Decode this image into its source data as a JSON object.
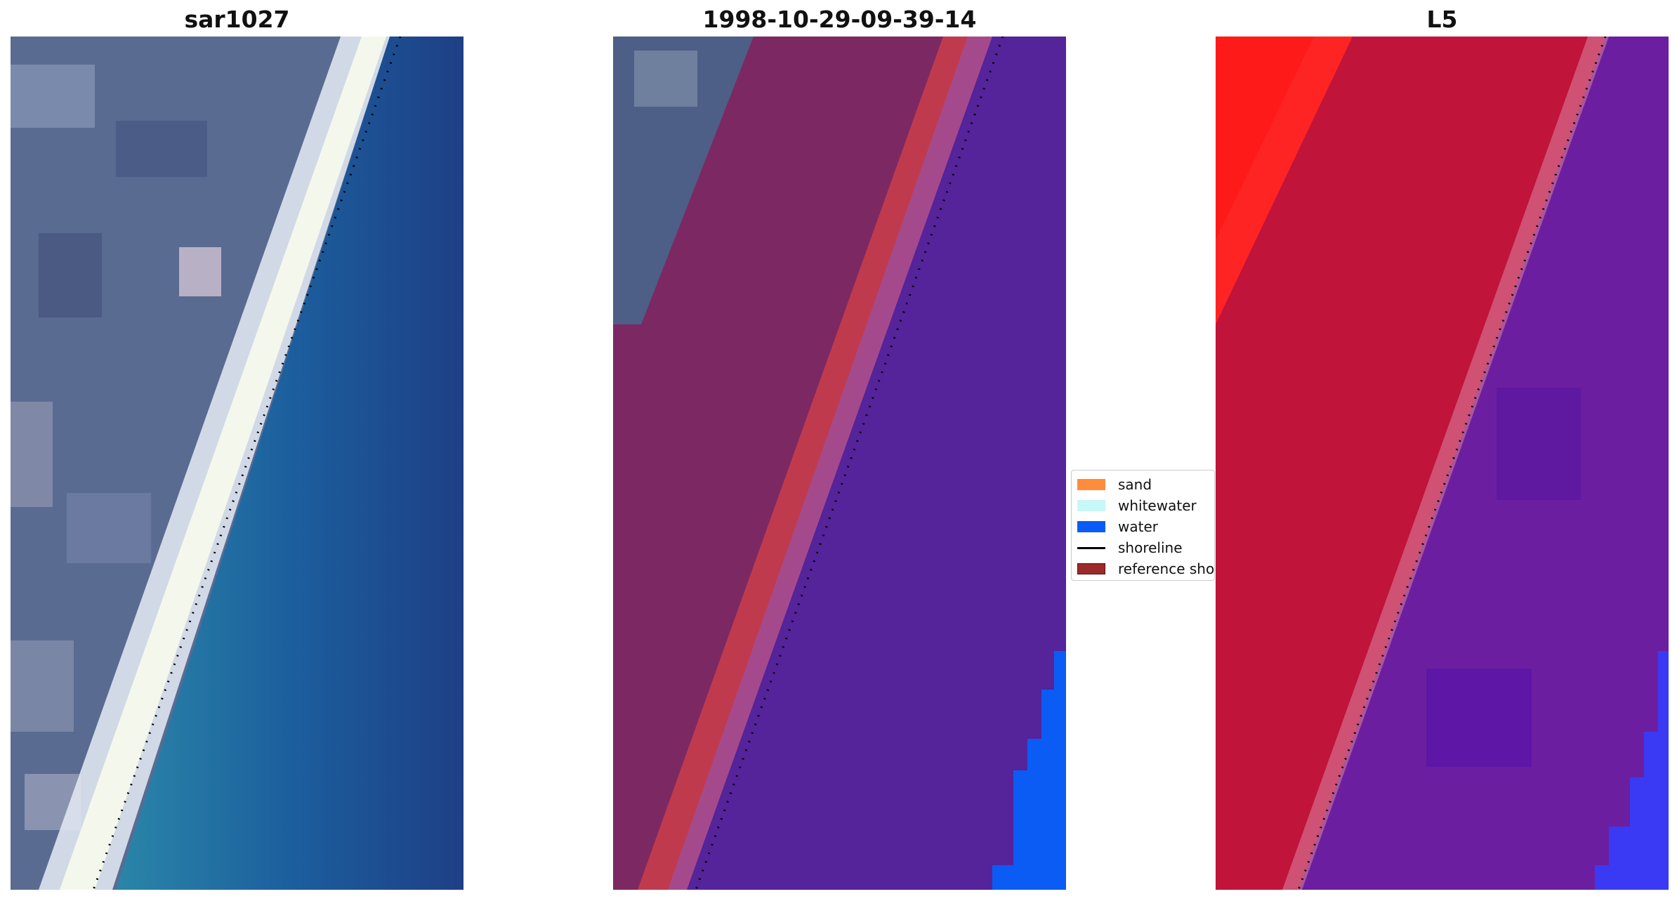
{
  "panels": [
    {
      "title": "sar1027"
    },
    {
      "title": "1998-10-29-09-39-14"
    },
    {
      "title": "L5"
    }
  ],
  "legend": {
    "items": [
      {
        "label": "sand",
        "color": "#ff8c3a",
        "kind": "patch"
      },
      {
        "label": "whitewater",
        "color": "#c8f7f7",
        "kind": "patch"
      },
      {
        "label": "water",
        "color": "#0a5cf5",
        "kind": "patch"
      },
      {
        "label": "shoreline",
        "color": "#000000",
        "kind": "line"
      },
      {
        "label": "reference shoreline",
        "color": "#9c2a2a",
        "kind": "patch"
      }
    ]
  },
  "colors": {
    "land_gray": "#5a6b92",
    "sea_blue": "#1c5f9e",
    "deep_blue": "#1e3f86",
    "beach_white": "#e8ecf2",
    "overlay_land": "#7c2963",
    "overlay_sea": "#55239a",
    "overlay_refline": "#c03a4e",
    "overlay_water": "#0a5cf5",
    "l5_land": "#c0143a",
    "l5_red": "#ff1a1a",
    "l5_sea": "#6b1fa0",
    "l5_blue": "#3a3af5"
  }
}
